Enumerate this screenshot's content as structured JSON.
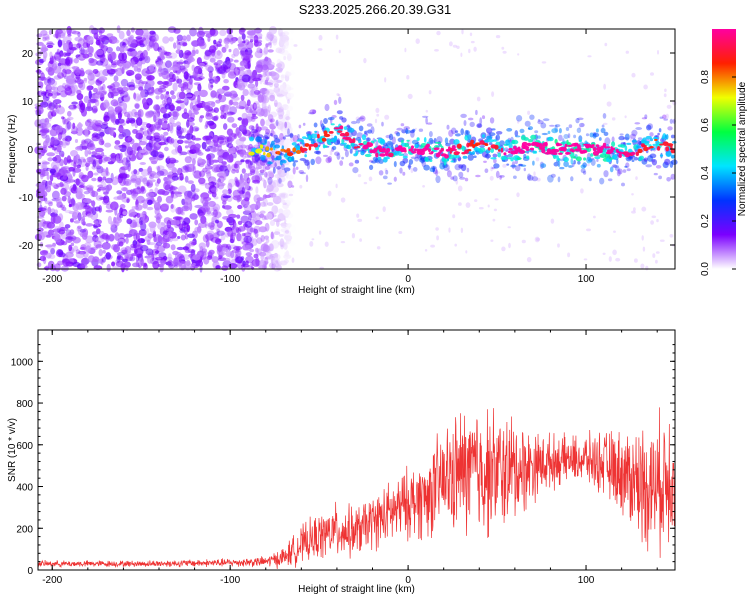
{
  "title": "S233.2025.266.20.39.G31",
  "chart_data": [
    {
      "type": "heatmap",
      "xlabel": "Height of straight line (km)",
      "ylabel": "Frequency (Hz)",
      "xlim": [
        -208,
        150
      ],
      "ylim": [
        -25,
        25
      ],
      "xticks": [
        -200,
        -100,
        0,
        100
      ],
      "yticks": [
        -20,
        -10,
        0,
        10,
        20
      ],
      "colorbar": {
        "label": "Normalized spectral amplitude",
        "range": [
          0,
          1
        ],
        "ticks": [
          "0.0",
          "0.2",
          "0.4",
          "0.6",
          "0.8"
        ],
        "colormap": [
          "#ffffff",
          "#7b00ff",
          "#0033ff",
          "#00e5ff",
          "#00ff40",
          "#f0ff00",
          "#ff2000",
          "#ff00a0"
        ]
      },
      "ridge": {
        "description_free_values": true,
        "x": [
          -85,
          -75,
          -65,
          -55,
          -45,
          -38,
          -30,
          -20,
          -10,
          0,
          10,
          20,
          30,
          40,
          50,
          60,
          70,
          80,
          90,
          100,
          110,
          120,
          130,
          140,
          150
        ],
        "center_hz": [
          0,
          -1,
          -1,
          1,
          3,
          4,
          1,
          0,
          -1,
          0,
          0,
          -1,
          0,
          1,
          0,
          0,
          0.5,
          0,
          0,
          0,
          0,
          -1,
          0,
          1,
          0
        ],
        "amplitude": [
          0.15,
          0.3,
          0.35,
          0.4,
          0.45,
          0.5,
          0.5,
          0.55,
          0.55,
          0.6,
          0.7,
          0.6,
          0.45,
          0.4,
          0.45,
          0.75,
          0.8,
          0.85,
          0.95,
          0.9,
          0.8,
          0.6,
          0.45,
          0.4,
          0.45
        ]
      },
      "noise_region_x": [
        -208,
        -75
      ]
    },
    {
      "type": "line",
      "xlabel": "Height of straight line (km)",
      "ylabel": "SNR (10 * v/v)",
      "xlim": [
        -208,
        150
      ],
      "ylim": [
        0,
        1150
      ],
      "xticks": [
        -200,
        -100,
        0,
        100
      ],
      "yticks": [
        0,
        200,
        400,
        600,
        800,
        1000
      ],
      "color": "#ee3333",
      "envelope": {
        "x": [
          -208,
          -150,
          -100,
          -80,
          -70,
          -60,
          -50,
          -40,
          -30,
          -20,
          -10,
          0,
          10,
          20,
          30,
          40,
          50,
          60,
          70,
          80,
          90,
          100,
          110,
          120,
          130,
          140,
          150
        ],
        "mean": [
          30,
          30,
          35,
          40,
          60,
          120,
          160,
          190,
          180,
          230,
          270,
          320,
          350,
          430,
          470,
          480,
          470,
          480,
          500,
          520,
          530,
          530,
          510,
          470,
          420,
          400,
          500
        ],
        "spread": [
          15,
          15,
          20,
          25,
          50,
          90,
          110,
          130,
          120,
          130,
          150,
          170,
          200,
          250,
          300,
          330,
          290,
          260,
          170,
          130,
          110,
          120,
          150,
          200,
          280,
          320,
          350
        ]
      }
    }
  ]
}
